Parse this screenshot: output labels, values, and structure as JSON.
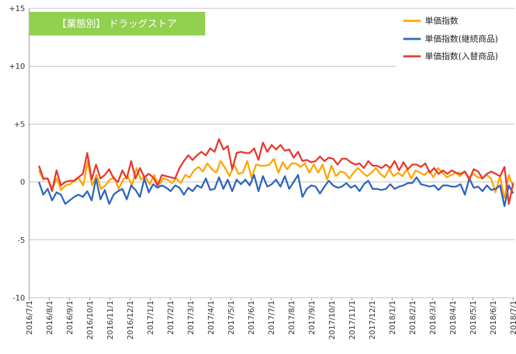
{
  "chart_data": {
    "type": "line",
    "title": "【業態別】 ドラッグストア",
    "title_bg_color": "#92D050",
    "ylim": [
      -10,
      15
    ],
    "y_ticks": [
      {
        "value": 15,
        "label": "+15"
      },
      {
        "value": 10,
        "label": "+10"
      },
      {
        "value": 5,
        "label": "+5"
      },
      {
        "value": 0,
        "label": "0"
      },
      {
        "value": -5,
        "label": "-5"
      },
      {
        "value": -10,
        "label": "-10"
      }
    ],
    "x_labels": [
      "2016/7/1",
      "2016/8/1",
      "2016/9/1",
      "2016/10/1",
      "2016/11/1",
      "2016/12/1",
      "2017/1/1",
      "2017/2/1",
      "2017/3/1",
      "2017/4/1",
      "2017/5/1",
      "2017/6/1",
      "2017/7/1",
      "2017/8/1",
      "2017/9/1",
      "2017/10/1",
      "2017/11/1",
      "2017/12/1",
      "2018/1/1",
      "2018/2/1",
      "2018/3/1",
      "2018/4/1",
      "2018/5/1",
      "2018/6/1",
      "2018/7/1"
    ],
    "legend_position": "top-right",
    "series": [
      {
        "name": "単価指数",
        "color": "#FFA500",
        "values": [
          1.0,
          0.2,
          0.3,
          -0.6,
          0.3,
          -0.7,
          -0.3,
          -0.2,
          0.1,
          0.3,
          -0.3,
          1.8,
          -0.3,
          0.6,
          -0.6,
          -0.3,
          0.2,
          0.4,
          -0.6,
          0.2,
          0.5,
          -0.3,
          1.2,
          0.2,
          0.5,
          -0.2,
          0.6,
          -0.3,
          0.3,
          0.2,
          -0.1,
          0.3,
          -0.1,
          0.6,
          0.4,
          1.0,
          1.3,
          0.9,
          1.6,
          1.1,
          0.8,
          1.8,
          1.2,
          0.5,
          1.5,
          0.7,
          0.8,
          1.8,
          0.3,
          1.5,
          1.4,
          1.4,
          1.5,
          2.0,
          0.8,
          1.7,
          1.1,
          1.6,
          1.6,
          1.3,
          1.6,
          0.8,
          1.5,
          0.8,
          1.5,
          0.2,
          1.4,
          0.5,
          0.9,
          0.8,
          0.3,
          0.8,
          1.2,
          0.8,
          0.5,
          0.8,
          1.2,
          0.7,
          0.4,
          1.1,
          0.5,
          0.8,
          0.5,
          1.1,
          0.3,
          1.0,
          0.8,
          0.6,
          1.0,
          0.4,
          1.2,
          0.8,
          0.4,
          0.6,
          0.8,
          0.5,
          0.9,
          0.4,
          0.7,
          0.4,
          0.3,
          0.6,
          0.3,
          -0.9,
          0.5,
          -1.4,
          0.6,
          -0.4
        ]
      },
      {
        "name": "単価指数(継続商品)",
        "color": "#3066BE",
        "values": [
          0.0,
          -1.1,
          -0.6,
          -1.6,
          -0.9,
          -1.1,
          -1.9,
          -1.6,
          -1.3,
          -1.1,
          -1.3,
          -0.8,
          -1.6,
          0.3,
          -1.5,
          -0.7,
          -1.9,
          -1.1,
          -0.8,
          -0.6,
          -1.5,
          -0.3,
          -0.7,
          -1.3,
          0.3,
          -0.9,
          -0.2,
          -0.5,
          -0.3,
          -0.5,
          -0.8,
          -0.3,
          -0.5,
          -1.1,
          -0.5,
          -0.8,
          -0.3,
          -0.5,
          0.3,
          -0.7,
          -0.6,
          0.4,
          -0.6,
          0.2,
          -0.8,
          0.2,
          -0.2,
          0.2,
          -0.3,
          0.6,
          -0.8,
          0.5,
          -0.4,
          -0.2,
          0.2,
          -0.4,
          0.5,
          -0.6,
          0.0,
          0.6,
          -1.3,
          -0.6,
          -0.3,
          -0.4,
          -1.0,
          -0.4,
          0.1,
          -0.3,
          -0.5,
          -0.4,
          -0.1,
          -0.5,
          -0.3,
          -0.8,
          -0.2,
          0.1,
          -0.6,
          -0.6,
          -0.7,
          -0.6,
          -0.2,
          -0.6,
          -0.4,
          -0.3,
          -0.1,
          -0.1,
          0.4,
          -0.2,
          -0.3,
          -0.4,
          -0.3,
          -0.7,
          -0.3,
          -0.3,
          -0.4,
          -0.4,
          -0.2,
          -1.1,
          0.3,
          -0.5,
          -0.4,
          -0.8,
          -0.3,
          -0.7,
          -0.6,
          -0.3,
          -2.1,
          -0.3,
          -1.0
        ]
      },
      {
        "name": "単価指数(入替商品)",
        "color": "#E8382F",
        "values": [
          1.4,
          0.3,
          0.3,
          -0.8,
          1.0,
          -0.3,
          0.0,
          0.1,
          0.1,
          0.4,
          0.7,
          2.5,
          0.2,
          1.5,
          0.3,
          0.6,
          1.1,
          0.3,
          0.0,
          1.0,
          0.3,
          1.8,
          0.3,
          1.2,
          0.4,
          0.7,
          0.4,
          -0.3,
          0.6,
          0.5,
          0.4,
          0.3,
          1.2,
          1.8,
          2.3,
          1.9,
          2.3,
          2.6,
          2.3,
          2.9,
          2.6,
          3.7,
          2.8,
          3.1,
          1.1,
          2.5,
          2.6,
          2.5,
          2.5,
          2.9,
          1.9,
          3.4,
          2.6,
          3.2,
          2.8,
          3.2,
          2.7,
          2.8,
          2.1,
          2.6,
          1.8,
          1.9,
          1.7,
          1.8,
          2.2,
          1.8,
          2.1,
          2.0,
          1.5,
          2.0,
          2.0,
          1.7,
          1.5,
          1.6,
          1.2,
          1.8,
          1.4,
          1.4,
          1.2,
          1.5,
          1.2,
          1.8,
          1.0,
          1.7,
          1.1,
          1.5,
          1.5,
          1.3,
          1.6,
          0.8,
          1.2,
          0.7,
          1.0,
          0.7,
          1.0,
          0.8,
          0.7,
          0.9,
          0.2,
          1.1,
          0.9,
          0.3,
          0.7,
          0.9,
          0.7,
          0.5,
          1.3,
          -1.9,
          -0.1
        ]
      }
    ]
  }
}
